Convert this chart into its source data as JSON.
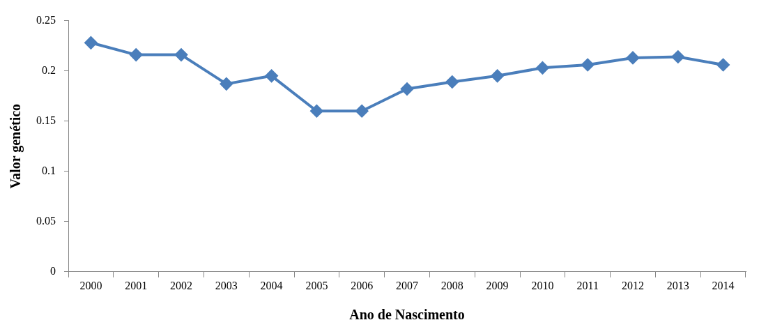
{
  "chart_data": {
    "type": "line",
    "xlabel": "Ano de Nascimento",
    "ylabel": "Valor genético",
    "categories": [
      "2000",
      "2001",
      "2002",
      "2003",
      "2004",
      "2005",
      "2006",
      "2007",
      "2008",
      "2009",
      "2010",
      "2011",
      "2012",
      "2013",
      "2014"
    ],
    "series": [
      {
        "color": "#4a7ebb",
        "values": [
          0.228,
          0.216,
          0.216,
          0.187,
          0.195,
          0.16,
          0.16,
          0.182,
          0.189,
          0.195,
          0.203,
          0.206,
          0.213,
          0.214,
          0.206
        ]
      }
    ],
    "ylim": [
      0,
      0.25
    ],
    "yticks": [
      0,
      0.05,
      0.1,
      0.15,
      0.2,
      0.25
    ],
    "grid": false,
    "legend": false,
    "marker": "diamond",
    "line_style": "solid"
  }
}
